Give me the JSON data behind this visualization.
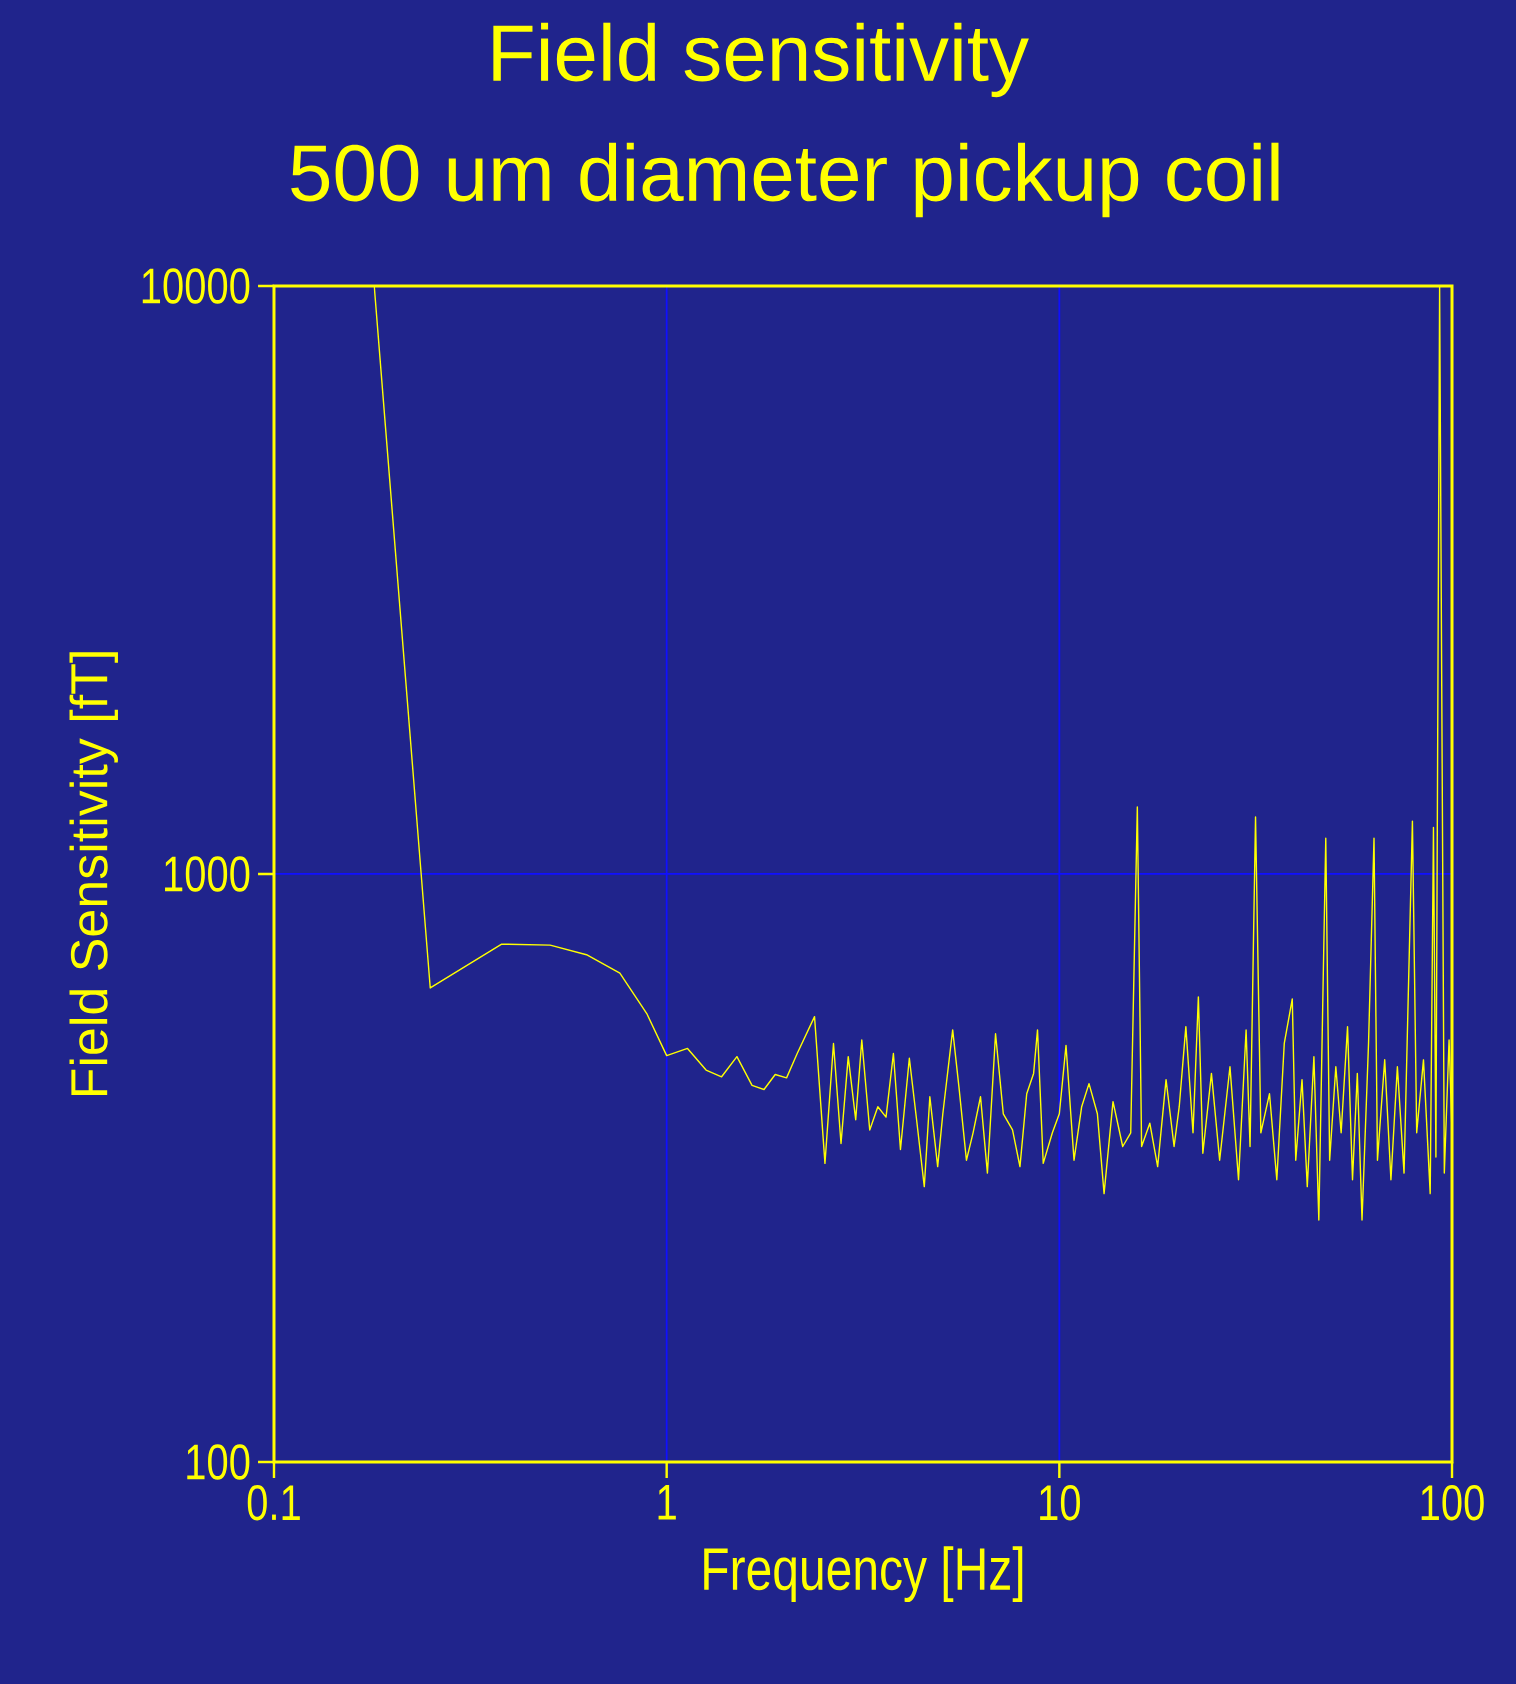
{
  "chart_data": {
    "type": "line",
    "title": "Field sensitivity",
    "subtitle": "500 um diameter pickup coil",
    "xlabel": "Frequency [Hz]",
    "ylabel": "Field Sensitivity [fT]",
    "log": "xy",
    "grid": true,
    "color": "#ffff00",
    "xlim": [
      0.1,
      100
    ],
    "ylim": [
      100,
      10000
    ],
    "xticks": [
      0.1,
      1,
      10,
      100
    ],
    "yticks": [
      100,
      1000,
      10000
    ],
    "x": [
      0.18,
      0.25,
      0.38,
      0.505,
      0.625,
      0.76,
      0.89,
      1.0,
      1.13,
      1.26,
      1.38,
      1.51,
      1.65,
      1.77,
      1.89,
      2.02,
      2.15,
      2.38,
      2.53,
      2.66,
      2.78,
      2.9,
      3.03,
      3.14,
      3.29,
      3.45,
      3.62,
      3.78,
      3.94,
      4.15,
      4.33,
      4.53,
      4.68,
      4.9,
      5.05,
      5.35,
      5.55,
      5.8,
      6.03,
      6.3,
      6.56,
      6.88,
      7.2,
      7.6,
      7.94,
      8.26,
      8.6,
      8.8,
      9.1,
      9.6,
      10.0,
      10.4,
      10.9,
      11.4,
      11.9,
      12.5,
      13.0,
      13.7,
      14.5,
      15.2,
      15.8,
      16.2,
      17.0,
      17.8,
      18.7,
      19.6,
      20.2,
      21.0,
      21.9,
      22.6,
      23.2,
      24.4,
      25.6,
      27.2,
      28.6,
      29.9,
      30.6,
      31.6,
      32.6,
      34.3,
      35.8,
      37.4,
      39.2,
      40.0,
      41.5,
      42.8,
      44.5,
      45.8,
      47.7,
      48.8,
      50.6,
      52.2,
      54.2,
      55.8,
      57.4,
      59.0,
      61.3,
      63.3,
      64.6,
      67.4,
      69.9,
      72.6,
      75.5,
      79.3,
      81.3,
      84.6,
      88.0,
      89.7,
      91.0,
      93.0,
      95.6,
      98.3,
      100
    ],
    "values": [
      10000,
      640,
      760,
      757,
      729,
      678,
      579,
      491,
      505,
      464,
      452,
      489,
      437,
      430,
      456,
      450,
      495,
      572,
      322,
      515,
      348,
      489,
      382,
      522,
      367,
      402,
      386,
      495,
      340,
      486,
      382,
      294,
      418,
      318,
      391,
      543,
      435,
      326,
      363,
      418,
      310,
      535,
      391,
      367,
      318,
      423,
      458,
      543,
      322,
      363,
      391,
      511,
      326,
      402,
      440,
      391,
      286,
      410,
      344,
      363,
      1300,
      344,
      377,
      318,
      447,
      344,
      402,
      550,
      363,
      618,
      335,
      458,
      326,
      470,
      302,
      543,
      344,
      1250,
      363,
      423,
      302,
      515,
      613,
      326,
      447,
      294,
      489,
      258,
      1150,
      326,
      470,
      363,
      550,
      302,
      458,
      258,
      515,
      1150,
      326,
      483,
      302,
      470,
      310,
      1230,
      363,
      483,
      286,
      1200,
      330,
      10000,
      310,
      522,
      363
    ]
  }
}
